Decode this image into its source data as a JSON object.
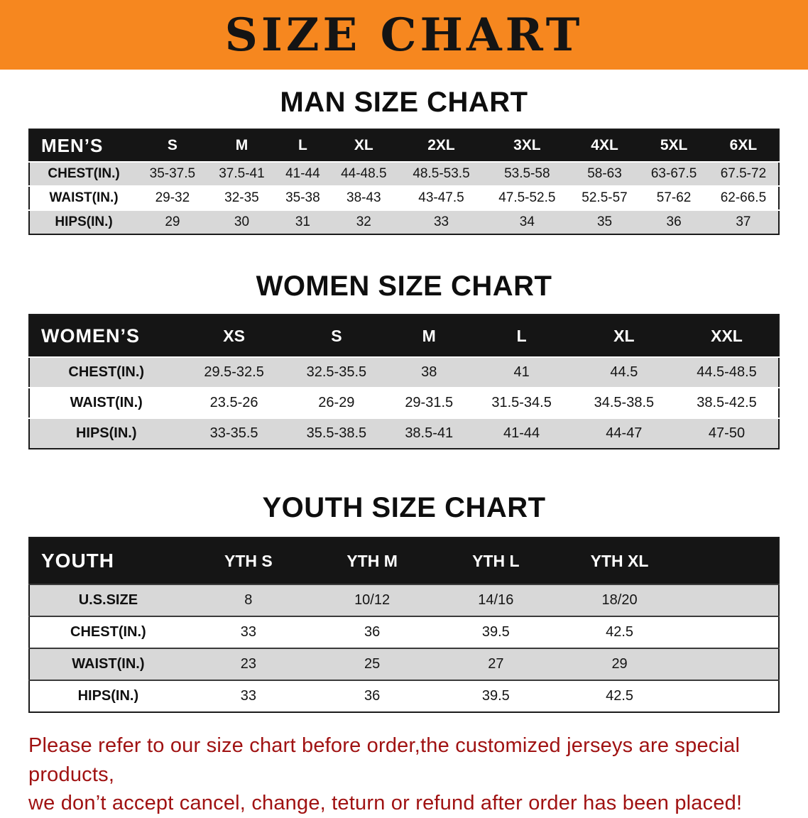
{
  "banner": {
    "title": "SIZE CHART",
    "bg_color": "#f6871f",
    "text_color": "#141414"
  },
  "sections": {
    "men": {
      "heading": "MAN SIZE CHART",
      "table": {
        "label": "MEN’S",
        "columns": [
          "S",
          "M",
          "L",
          "XL",
          "2XL",
          "3XL",
          "4XL",
          "5XL",
          "6XL"
        ],
        "rows": [
          {
            "label": "CHEST(IN.)",
            "values": [
              "35-37.5",
              "37.5-41",
              "41-44",
              "44-48.5",
              "48.5-53.5",
              "53.5-58",
              "58-63",
              "63-67.5",
              "67.5-72"
            ]
          },
          {
            "label": "WAIST(IN.)",
            "values": [
              "29-32",
              "32-35",
              "35-38",
              "38-43",
              "43-47.5",
              "47.5-52.5",
              "52.5-57",
              "57-62",
              "62-66.5"
            ]
          },
          {
            "label": "HIPS(IN.)",
            "values": [
              "29",
              "30",
              "31",
              "32",
              "33",
              "34",
              "35",
              "36",
              "37"
            ]
          }
        ]
      }
    },
    "women": {
      "heading": "WOMEN SIZE CHART",
      "table": {
        "label": "WOMEN’S",
        "columns": [
          "XS",
          "S",
          "M",
          "L",
          "XL",
          "XXL"
        ],
        "rows": [
          {
            "label": "CHEST(IN.)",
            "values": [
              "29.5-32.5",
              "32.5-35.5",
              "38",
              "41",
              "44.5",
              "44.5-48.5"
            ]
          },
          {
            "label": "WAIST(IN.)",
            "values": [
              "23.5-26",
              "26-29",
              "29-31.5",
              "31.5-34.5",
              "34.5-38.5",
              "38.5-42.5"
            ]
          },
          {
            "label": "HIPS(IN.)",
            "values": [
              "33-35.5",
              "35.5-38.5",
              "38.5-41",
              "41-44",
              "44-47",
              "47-50"
            ]
          }
        ]
      }
    },
    "youth": {
      "heading": "YOUTH SIZE CHART",
      "table": {
        "label": "YOUTH",
        "columns": [
          "YTH S",
          "YTH M",
          "YTH L",
          "YTH XL"
        ],
        "rows": [
          {
            "label": "U.S.SIZE",
            "values": [
              "8",
              "10/12",
              "14/16",
              "18/20"
            ]
          },
          {
            "label": "CHEST(IN.)",
            "values": [
              "33",
              "36",
              "39.5",
              "42.5"
            ]
          },
          {
            "label": "WAIST(IN.)",
            "values": [
              "23",
              "25",
              "27",
              "29"
            ]
          },
          {
            "label": "HIPS(IN.)",
            "values": [
              "33",
              "36",
              "39.5",
              "42.5"
            ]
          }
        ]
      }
    }
  },
  "footer": {
    "line1": "Please refer to our size chart before order,the customized jerseys are special products,",
    "line2": "we don’t accept cancel, change, teturn or refund after order has been placed!",
    "text_color": "#a01212"
  }
}
